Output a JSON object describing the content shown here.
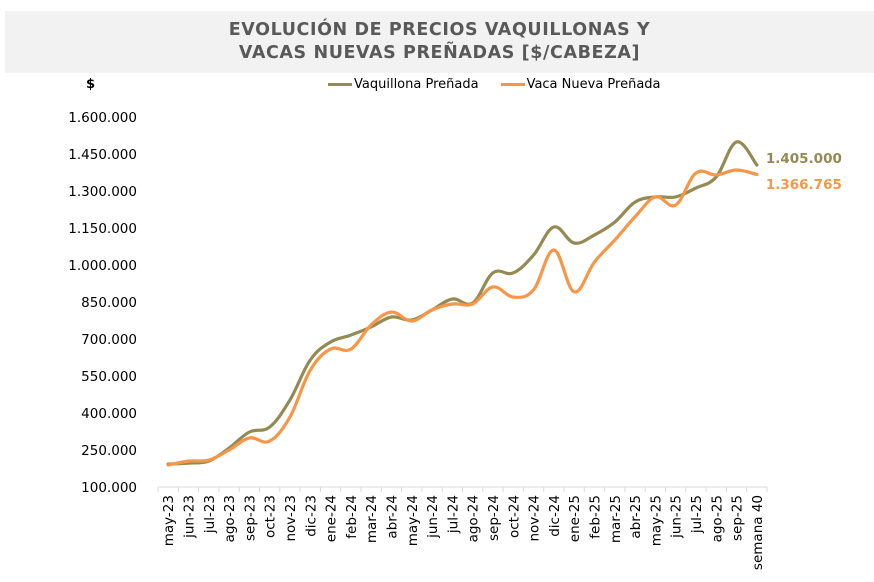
{
  "colors": {
    "title_band": "#f2f2f2",
    "title_text": "#595959",
    "vaquillona": "#948a54",
    "vaca": "#f79646",
    "axis": "#d9d9d9"
  },
  "chart_data": {
    "type": "line",
    "title_line1": "EVOLUCIÓN DE PRECIOS VAQUILLONAS Y",
    "title_line2": "VACAS NUEVAS PREÑADAS [$/CABEZA]",
    "ylabel": "$",
    "xlabel": "",
    "ylim": [
      100000,
      1600000
    ],
    "yticks": [
      100000,
      250000,
      400000,
      550000,
      700000,
      850000,
      1000000,
      1150000,
      1300000,
      1450000,
      1600000
    ],
    "ytick_labels": [
      "100.000",
      "250.000",
      "400.000",
      "550.000",
      "700.000",
      "850.000",
      "1.000.000",
      "1.150.000",
      "1.300.000",
      "1.450.000",
      "1.600.000"
    ],
    "grid": false,
    "legend_position": "top",
    "categories": [
      "may-23",
      "jun-23",
      "jul-23",
      "ago-23",
      "sep-23",
      "oct-23",
      "nov-23",
      "dic-23",
      "ene-24",
      "feb-24",
      "mar-24",
      "abr-24",
      "may-24",
      "jun-24",
      "jul-24",
      "ago-24",
      "sep-24",
      "oct-24",
      "nov-24",
      "dic-24",
      "ene-25",
      "feb-25",
      "mar-25",
      "abr-25",
      "may-25",
      "jun-25",
      "jul-25",
      "ago-25",
      "sep-25",
      "semana 40"
    ],
    "series": [
      {
        "name": "Vaquillona Preñada",
        "color": "#948a54",
        "values": [
          193000,
          197000,
          205000,
          258000,
          323000,
          343000,
          453000,
          615000,
          688000,
          716000,
          749000,
          789000,
          777000,
          818000,
          862000,
          846000,
          968000,
          968000,
          1040000,
          1154000,
          1089000,
          1122000,
          1174000,
          1255000,
          1276000,
          1276000,
          1312000,
          1357000,
          1499000,
          1405000
        ],
        "end_label": "1.405.000"
      },
      {
        "name": "Vaca Nueva Preñada",
        "color": "#f79646",
        "values": [
          189000,
          205000,
          209000,
          250000,
          299000,
          286000,
          384000,
          574000,
          659000,
          659000,
          757000,
          809000,
          773000,
          818000,
          842000,
          842000,
          911000,
          870000,
          899000,
          1061000,
          891000,
          1012000,
          1101000,
          1195000,
          1276000,
          1243000,
          1373000,
          1365000,
          1385000,
          1366765
        ],
        "end_label": "1.366.765"
      }
    ]
  }
}
